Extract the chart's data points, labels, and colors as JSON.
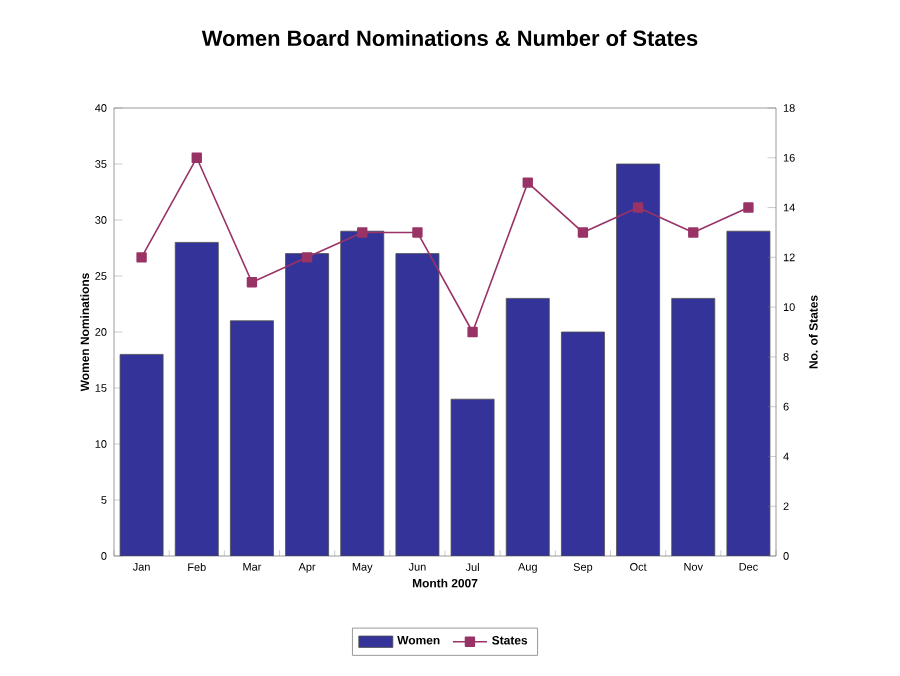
{
  "chart_data": {
    "type": "bar",
    "title": "Women Board Nominations & Number of States",
    "xlabel": "Month 2007",
    "ylabel": "Women Nominations",
    "y2label": "No. of States",
    "categories": [
      "Jan",
      "Feb",
      "Mar",
      "Apr",
      "May",
      "Jun",
      "Jul",
      "Aug",
      "Sep",
      "Oct",
      "Nov",
      "Dec"
    ],
    "series": [
      {
        "name": "Women",
        "color": "#333399",
        "values": [
          18,
          28,
          21,
          27,
          29,
          27,
          14,
          23,
          20,
          35,
          23,
          29
        ]
      },
      {
        "name": "States",
        "type": "line",
        "axis": "y2",
        "color": "#993366",
        "marker": "square",
        "values": [
          12,
          16,
          11,
          12,
          13,
          13,
          9,
          15,
          13,
          14,
          13,
          14
        ]
      }
    ],
    "ylim": [
      0,
      40
    ],
    "yticks": [
      0,
      5,
      10,
      15,
      20,
      25,
      30,
      35,
      40
    ],
    "y2lim": [
      0,
      18
    ],
    "y2ticks": [
      0,
      2,
      4,
      6,
      8,
      10,
      12,
      14,
      16,
      18
    ],
    "legend": "bottom"
  }
}
